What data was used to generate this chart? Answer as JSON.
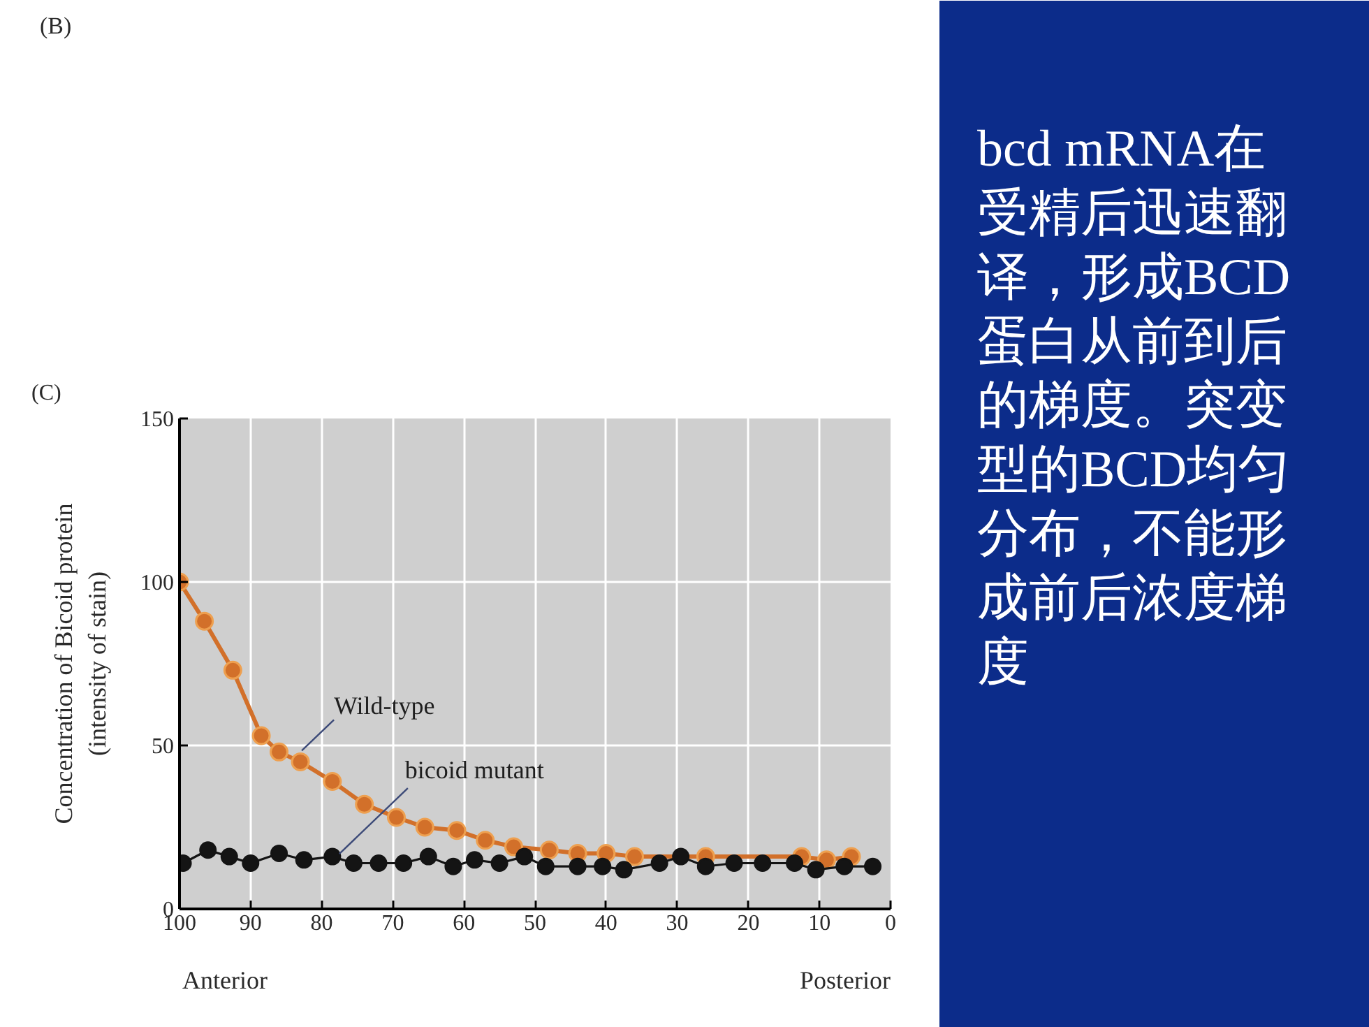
{
  "chart_data": {
    "type": "line",
    "series": [
      {
        "name": "Wild-type",
        "color": "#d2702a",
        "x": [
          100,
          96.5,
          92.5,
          88.5,
          86,
          83,
          78.5,
          74,
          69.5,
          65.5,
          61,
          57,
          53,
          48,
          44,
          40,
          36,
          26,
          12.5,
          9,
          5.5
        ],
        "values": [
          100,
          88,
          73,
          53,
          48,
          45,
          39,
          32,
          28,
          25,
          24,
          21,
          19,
          18,
          17,
          17,
          16,
          16,
          16,
          15,
          16
        ]
      },
      {
        "name": "bicoid mutant",
        "color": "#141414",
        "x": [
          99.5,
          96,
          93,
          90,
          86,
          82.5,
          78.5,
          75.5,
          72,
          68.5,
          65,
          61.5,
          58.5,
          55,
          51.5,
          48.5,
          44,
          40.5,
          37.5,
          32.5,
          29.5,
          26,
          22,
          18,
          13.5,
          10.5,
          6.5,
          2.5
        ],
        "values": [
          14,
          18,
          16,
          14,
          17,
          15,
          16,
          14,
          14,
          14,
          16,
          13,
          15,
          14,
          16,
          13,
          13,
          13,
          12,
          14,
          16,
          13,
          14,
          14,
          14,
          12,
          13,
          13
        ]
      }
    ],
    "xlim": [
      100,
      0
    ],
    "xticks": [
      100,
      90,
      80,
      70,
      60,
      50,
      40,
      30,
      20,
      10,
      0
    ],
    "ylim": [
      0,
      150
    ],
    "yticks": [
      0,
      50,
      100,
      150
    ],
    "ylabel": "Concentration of Bicoid protein\n(intensity of stain)",
    "grid": true,
    "marker": "circle",
    "annotations": [
      "(B)",
      "(C)",
      "Anterior",
      "Posterior",
      "bcd mRNA在受精后迅速翻译，形成BCD蛋白从前到后的梯度。突变型的BCD均匀分布，不能形成前后浓度梯度"
    ]
  }
}
